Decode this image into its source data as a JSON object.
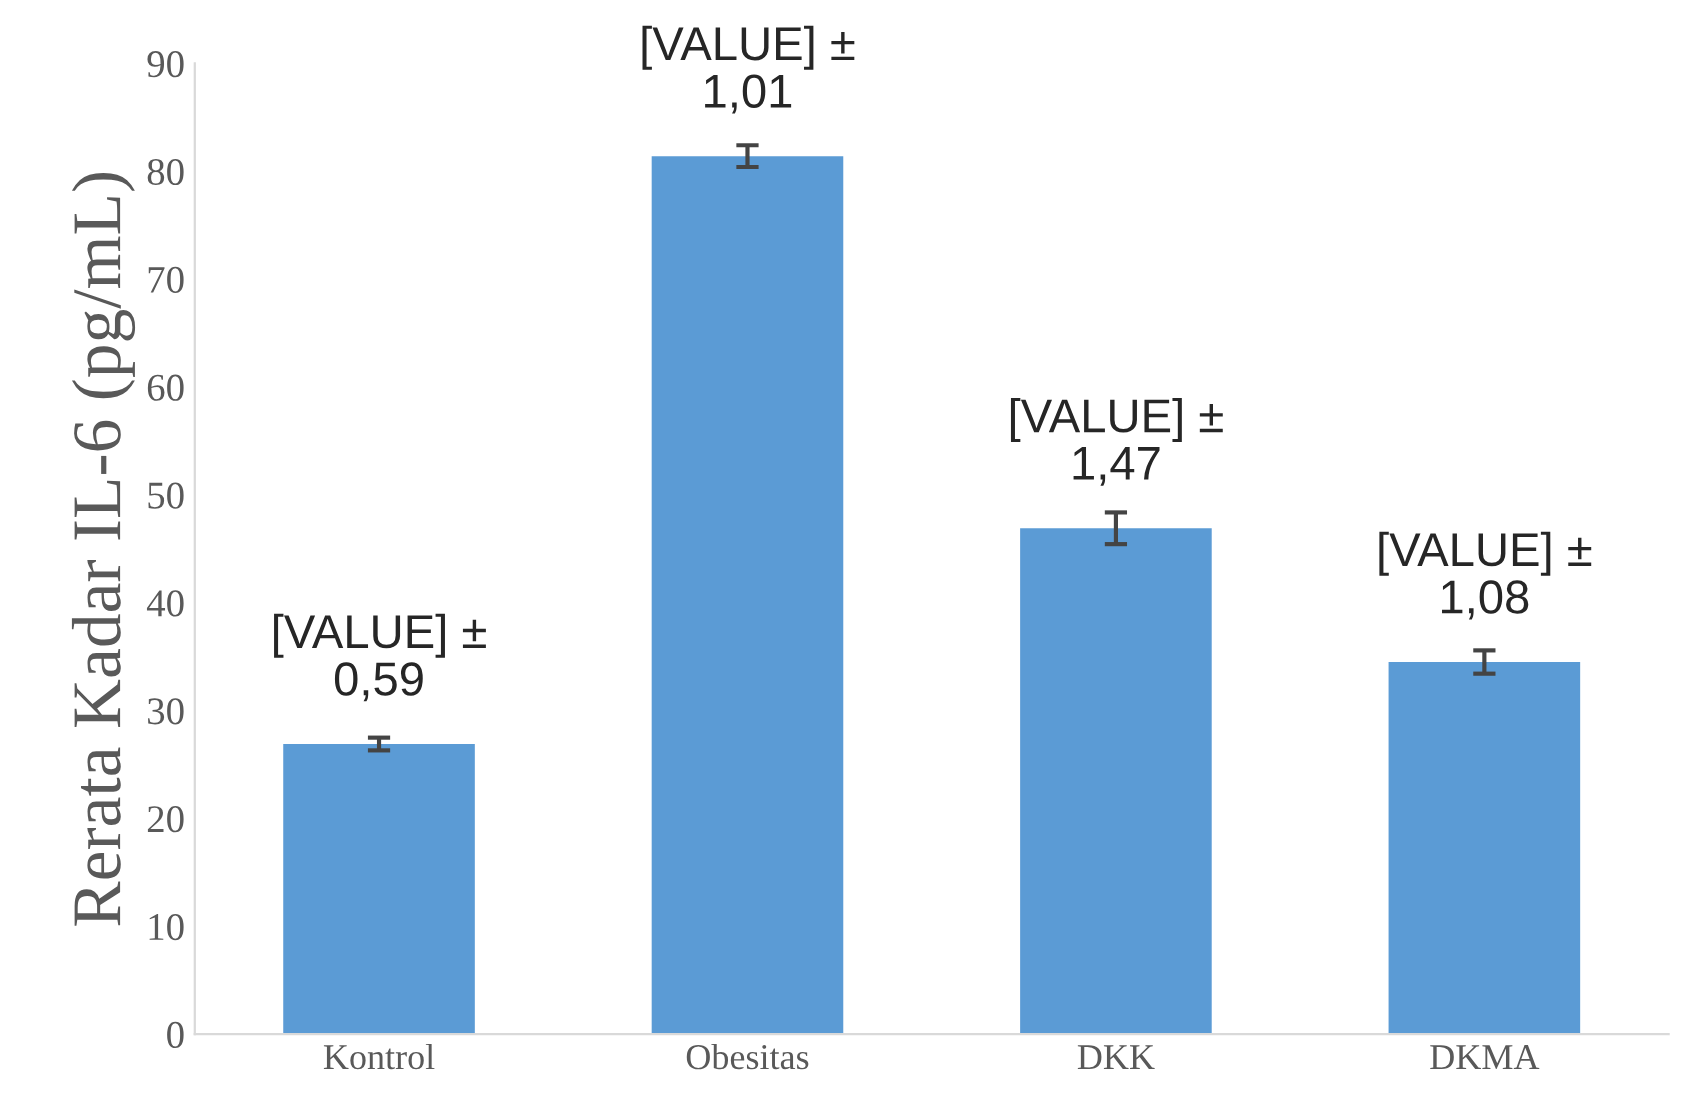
{
  "chart_data": {
    "type": "bar",
    "ylabel": "Rerata Kadar IL-6 (pg/mL)",
    "categories": [
      "Kontrol",
      "Obesitas",
      "DKK",
      "DKMA"
    ],
    "values": [
      26.9,
      81.4,
      46.9,
      34.5
    ],
    "errors": [
      0.59,
      1.01,
      1.47,
      1.08
    ],
    "annotations": [
      {
        "text": "[VALUE] ±\n0,59",
        "x": "Kontrol",
        "y": 26.9
      },
      {
        "text": "[VALUE] ±\n1,01",
        "x": "Obesitas",
        "y": 81.4
      },
      {
        "text": "[VALUE] ±\n1,47",
        "x": "DKK",
        "y": 46.9
      },
      {
        "text": "[VALUE] ±\n1,08",
        "x": "DKMA",
        "y": 34.5
      }
    ],
    "color": "#5b9bd5",
    "ylim": [
      0,
      90
    ],
    "yticks": [
      0,
      10,
      20,
      30,
      40,
      50,
      60,
      70,
      80,
      90
    ],
    "grid": false
  }
}
